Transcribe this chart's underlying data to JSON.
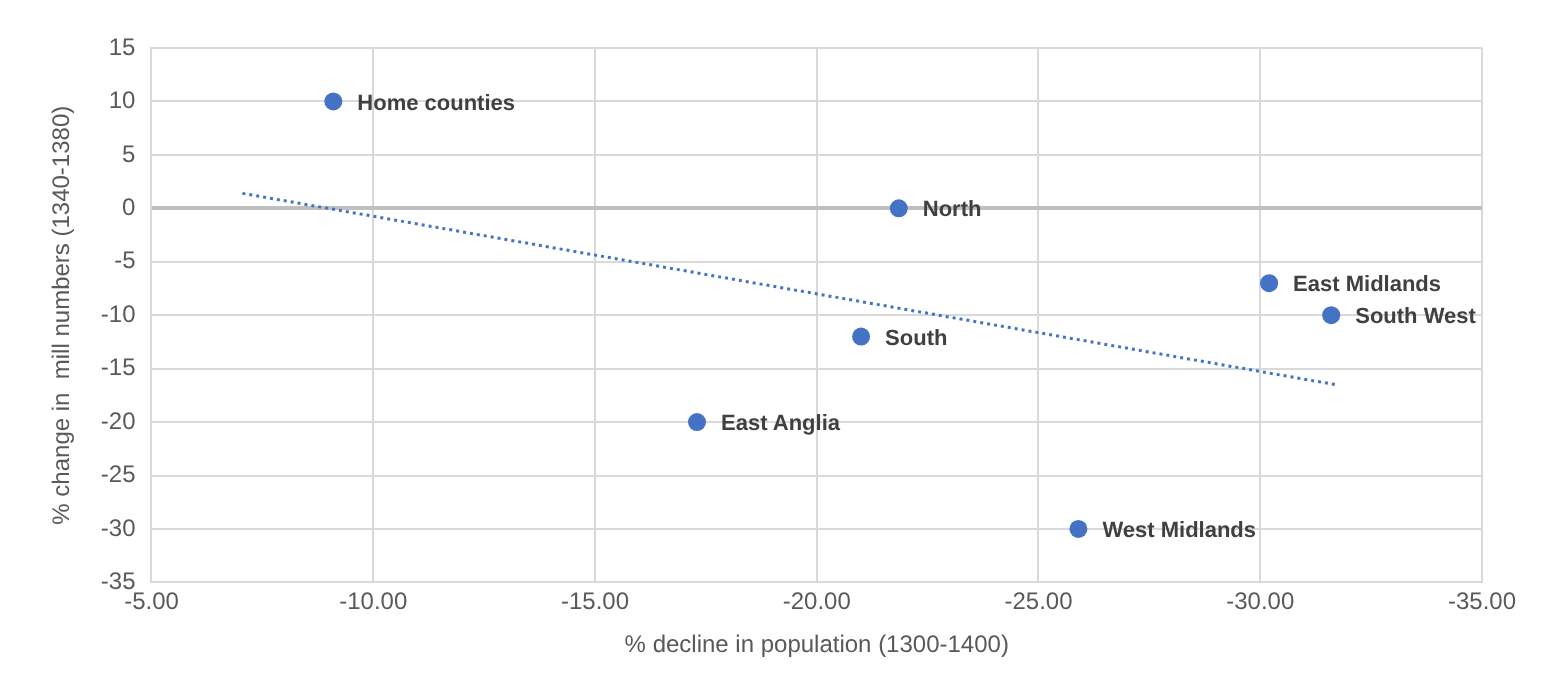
{
  "chart_data": {
    "type": "scatter",
    "xlabel": "% decline in population (1300-1400)",
    "ylabel": "% change in  mill numbers (1340-1380)",
    "series": [
      {
        "color": "#4472c4",
        "x": [
          -9.1,
          -17.3,
          -21.0,
          -21.85,
          -25.9,
          -30.2,
          -31.6
        ],
        "values": [
          10,
          -20,
          -12,
          0,
          -30,
          -7,
          -10
        ]
      },
      {
        "type": "line",
        "color": "#4472c4",
        "line_style": "dotted",
        "marker": "none",
        "x": [
          -7.05,
          -31.7
        ],
        "values": [
          1.4,
          -16.5
        ]
      }
    ],
    "annotations": [
      {
        "text": "Home counties",
        "x": -9.1,
        "y": 10
      },
      {
        "text": "East Anglia",
        "x": -17.3,
        "y": -20
      },
      {
        "text": "South",
        "x": -21.0,
        "y": -12
      },
      {
        "text": "North",
        "x": -21.85,
        "y": 0
      },
      {
        "text": "West Midlands",
        "x": -25.9,
        "y": -30
      },
      {
        "text": "East Midlands",
        "x": -30.2,
        "y": -7
      },
      {
        "text": "South West",
        "x": -31.6,
        "y": -10
      }
    ],
    "xlim": [
      -5,
      -35
    ],
    "xticks": [
      {
        "value": -5,
        "label": "-5.00"
      },
      {
        "value": -10,
        "label": "-10.00"
      },
      {
        "value": -15,
        "label": "-15.00"
      },
      {
        "value": -20,
        "label": "-20.00"
      },
      {
        "value": -25,
        "label": "-25.00"
      },
      {
        "value": -30,
        "label": "-30.00"
      },
      {
        "value": -35,
        "label": "-35.00"
      }
    ],
    "ylim": [
      -35,
      15
    ],
    "yticks": [
      -35,
      -30,
      -25,
      -20,
      -15,
      -10,
      -5,
      0,
      5,
      10,
      15
    ],
    "grid": true,
    "legend": false,
    "marker": "circle"
  }
}
